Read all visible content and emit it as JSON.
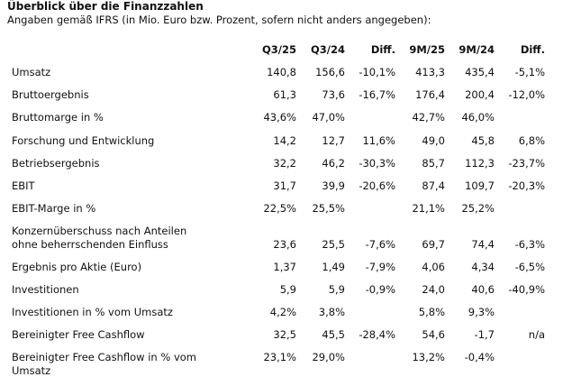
{
  "title": "Überblick über die Finanzzahlen",
  "subtitle": "Angaben gemäß IFRS (in Mio. Euro bzw. Prozent, sofern nicht anders angegeben):",
  "columns": [
    "Q3/25",
    "Q3/24",
    "Diff.",
    "9M/25",
    "9M/24",
    "Diff."
  ],
  "rows": [
    {
      "label": "Umsatz",
      "values": [
        "140,8",
        "156,6",
        "-10,1%",
        "413,3",
        "435,4",
        "-5,1%"
      ]
    },
    {
      "label": "Bruttoergebnis",
      "values": [
        "61,3",
        "73,6",
        "-16,7%",
        "176,4",
        "200,4",
        "-12,0%"
      ]
    },
    {
      "label": "Bruttomarge in %",
      "values": [
        "43,6%",
        "47,0%",
        "",
        "42,7%",
        "46,0%",
        ""
      ]
    },
    {
      "label": "Forschung und Entwicklung",
      "values": [
        "14,2",
        "12,7",
        "11,6%",
        "49,0",
        "45,8",
        "6,8%"
      ]
    },
    {
      "label": "Betriebsergebnis",
      "values": [
        "32,2",
        "46,2",
        "-30,3%",
        "85,7",
        "112,3",
        "-23,7%"
      ]
    },
    {
      "label": "EBIT",
      "values": [
        "31,7",
        "39,9",
        "-20,6%",
        "87,4",
        "109,7",
        "-20,3%"
      ]
    },
    {
      "label": "EBIT-Marge in %",
      "values": [
        "22,5%",
        "25,5%",
        "",
        "21,1%",
        "25,2%",
        ""
      ]
    },
    {
      "label": "Konzernüberschuss nach Anteilen",
      "label2": "ohne beherrschenden Einfluss",
      "values_on_second_line": true,
      "values": [
        "23,6",
        "25,5",
        "-7,6%",
        "69,7",
        "74,4",
        "-6,3%"
      ]
    },
    {
      "label": "Ergebnis pro Aktie (Euro)",
      "values": [
        "1,37",
        "1,49",
        "-7,9%",
        "4,06",
        "4,34",
        "-6,5%"
      ]
    },
    {
      "label": "Investitionen",
      "values": [
        "5,9",
        "5,9",
        "-0,9%",
        "24,0",
        "40,6",
        "-40,9%"
      ]
    },
    {
      "label": "Investitionen in % vom Umsatz",
      "values": [
        "4,2%",
        "3,8%",
        "",
        "5,8%",
        "9,3%",
        ""
      ]
    },
    {
      "label": "Bereinigter Free Cashflow",
      "values": [
        "32,5",
        "45,5",
        "-28,4%",
        "54,6",
        "-1,7",
        "n/a"
      ]
    },
    {
      "label": "Bereinigter Free Cashflow in % vom",
      "label2": "Umsatz",
      "values": [
        "23,1%",
        "29,0%",
        "",
        "13,2%",
        "-0,4%",
        ""
      ]
    }
  ]
}
